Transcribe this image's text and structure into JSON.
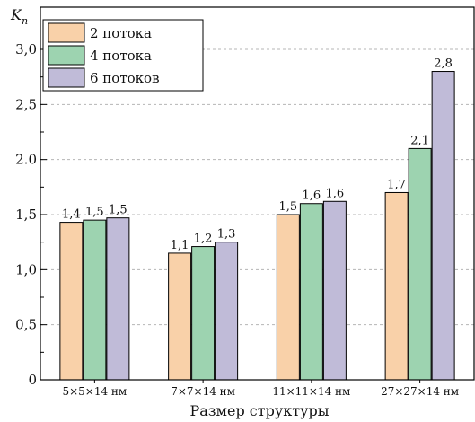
{
  "chart_data": {
    "type": "bar",
    "title": "",
    "xlabel": "Размер структуры",
    "ylabel_main": "K",
    "ylabel_sub": "n",
    "ylim": [
      0,
      3.0
    ],
    "yticks": [
      {
        "value": 0,
        "label": "0"
      },
      {
        "value": 0.5,
        "label": "0,5"
      },
      {
        "value": 1.0,
        "label": "1,0"
      },
      {
        "value": 1.5,
        "label": "1,5"
      },
      {
        "value": 2.0,
        "label": "2.0"
      },
      {
        "value": 2.5,
        "label": "2,5"
      },
      {
        "value": 3.0,
        "label": "3,0"
      }
    ],
    "grid": true,
    "legend_position": "top-left",
    "categories": [
      "5×5×14 нм",
      "7×7×14 нм",
      "11×11×14 нм",
      "27×27×14 нм"
    ],
    "series": [
      {
        "name": "2 потока",
        "color": "#f9d1a9",
        "values": [
          1.43,
          1.15,
          1.5,
          1.7
        ],
        "labels": [
          "1,4",
          "1,1",
          "1,5",
          "1,7"
        ]
      },
      {
        "name": "4 потока",
        "color": "#9dd3b0",
        "values": [
          1.45,
          1.21,
          1.6,
          2.1
        ],
        "labels": [
          "1,5",
          "1,2",
          "1,6",
          "2,1"
        ]
      },
      {
        "name": "6 потоков",
        "color": "#c0bbd8",
        "values": [
          1.47,
          1.25,
          1.62,
          2.8
        ],
        "labels": [
          "1,5",
          "1,3",
          "1,6",
          "2,8"
        ]
      }
    ]
  }
}
